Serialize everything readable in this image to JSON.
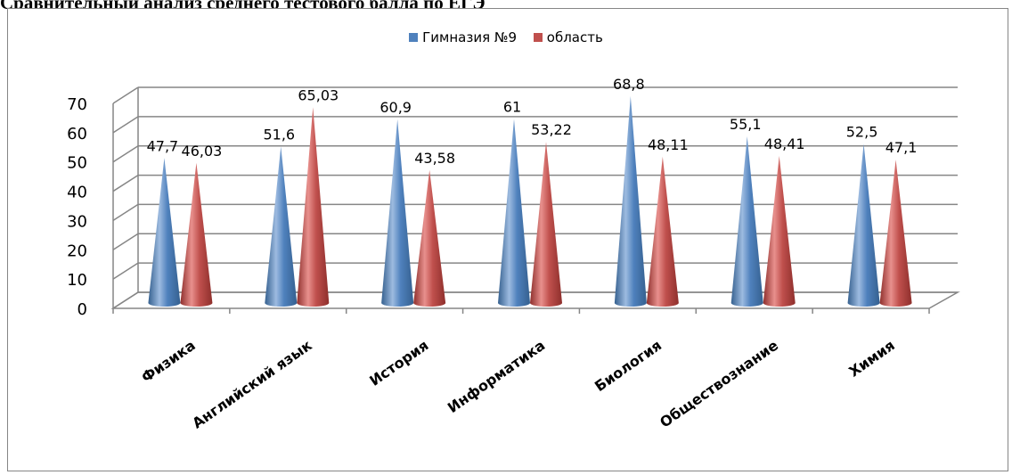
{
  "page": {
    "title": "Сравнительный анализ среднего тестового балла по ЕГЭ"
  },
  "colors": {
    "series1": "#4f81bd",
    "series2": "#c0504d",
    "grid": "#868686"
  },
  "chart_data": {
    "type": "bar",
    "title": "",
    "xlabel": "",
    "ylabel": "",
    "ylim": [
      0,
      70
    ],
    "yticks": [
      0,
      10,
      20,
      30,
      40,
      50,
      60,
      70
    ],
    "grid": true,
    "legend_position": "top",
    "categories": [
      "Физика",
      "Английский язык",
      "История",
      "Информатика",
      "Биология",
      "Обществознание",
      "Химия"
    ],
    "series": [
      {
        "name": "Гимназия №9",
        "values": [
          47.7,
          51.6,
          60.9,
          61,
          68.8,
          55.1,
          52.5
        ],
        "labels": [
          "47,7",
          "51,6",
          "60,9",
          "61",
          "68,8",
          "55,1",
          "52,5"
        ]
      },
      {
        "name": "область",
        "values": [
          46.03,
          65.03,
          43.58,
          53.22,
          48.11,
          48.41,
          47.1
        ],
        "labels": [
          "46,03",
          "65,03",
          "43,58",
          "53,22",
          "48,11",
          "48,41",
          "47,1"
        ]
      }
    ]
  }
}
